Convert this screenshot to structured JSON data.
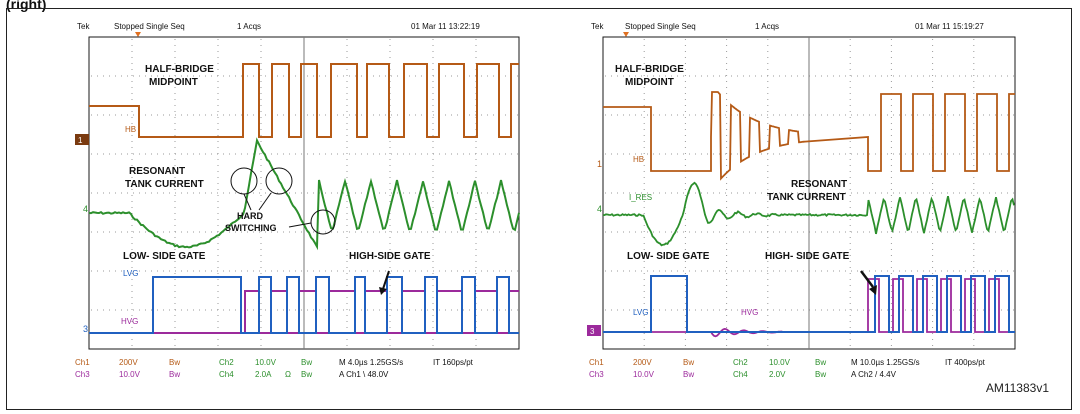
{
  "caption": "(right)",
  "figure_code": "AM11383v1",
  "colors": {
    "hb": "#b55a16",
    "current": "#2c8f2c",
    "lvg": "#2060c0",
    "hvg": "#9c2a9c",
    "frame": "#1a1a1a",
    "grid": "#9a9a9a",
    "text": "#111111"
  },
  "scopes": [
    {
      "header": {
        "brand": "Tek",
        "status": "Stopped Single Seq",
        "acqs": "1 Acqs",
        "date": "01 Mar 11 13:22:19"
      },
      "labels": {
        "hb_title_1": "HALF-BRIDGE",
        "hb_title_2": "MIDPOINT",
        "tank_1": "RESONANT",
        "tank_2": "TANK CURRENT",
        "hard_1": "HARD",
        "hard_2": "SWITCHING",
        "low_gate": "LOW- SIDE GATE",
        "high_gate": "HIGH-SIDE GATE",
        "hb_tag": "HB",
        "lvg_tag": "LVG",
        "hvg_tag": "HVG",
        "ch1_marker": "1",
        "ch4_marker": "4",
        "ch3_marker": "3"
      },
      "footer": {
        "row1": [
          "Ch1",
          "200V",
          "Bw",
          "Ch2",
          "10.0V",
          "Bw",
          "M 4.0µs 1.25GS/s",
          "IT 160ps/pt"
        ],
        "row2": [
          "Ch3",
          "10.0V",
          "Bw",
          "Ch4",
          "2.0A",
          "Ω",
          "Bw",
          "A  Ch1  \\  48.0V"
        ]
      }
    },
    {
      "header": {
        "brand": "Tek",
        "status": "Stopped Single Seq",
        "acqs": "1 Acqs",
        "date": "01 Mar 11 15:19:27"
      },
      "labels": {
        "hb_title_1": "HALF-BRIDGE",
        "hb_title_2": "MIDPOINT",
        "tank_1": "RESONANT",
        "tank_2": "TANK CURRENT",
        "low_gate": "LOW- SIDE GATE",
        "high_gate": "HIGH- SIDE GATE",
        "hb_tag": "HB",
        "ires_tag": "I_RES",
        "lvg_tag": "LVG",
        "hvg_tag": "HVG",
        "ch1_marker": "1",
        "ch4_marker": "4",
        "ch3_marker": "3"
      },
      "footer": {
        "row1": [
          "Ch1",
          "200V",
          "Bw",
          "Ch2",
          "10.0V",
          "Bw",
          "M 10.0µs 1.25GS/s",
          "IT 400ps/pt"
        ],
        "row2": [
          "Ch3",
          "10.0V",
          "Bw",
          "Ch4",
          "2.0V",
          "Bw",
          "A  Ch2  /  4.4V"
        ]
      }
    }
  ]
}
